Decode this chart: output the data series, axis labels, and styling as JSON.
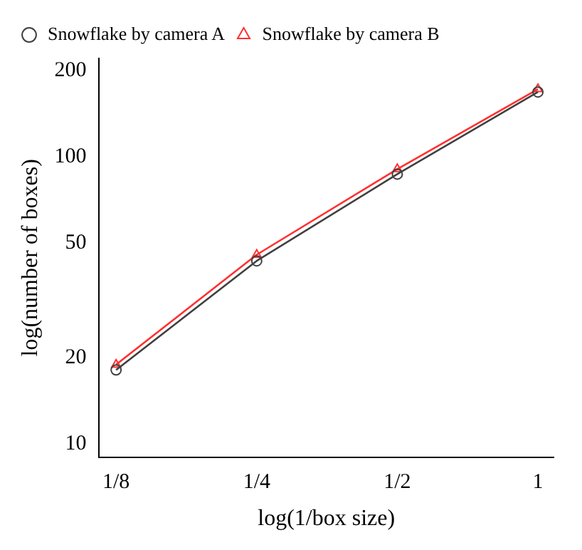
{
  "chart_data": {
    "type": "line",
    "xlabel": "log(1/box size)",
    "ylabel": "log(number of boxes)",
    "log": "xy",
    "x": [
      0.125,
      0.25,
      0.5,
      1
    ],
    "series": [
      {
        "name": "Snowflake by camera A",
        "color": "#404040",
        "marker": "circle",
        "values": [
          18.1,
          43.4,
          87,
          168
        ]
      },
      {
        "name": "Snowflake by camera B",
        "color": "#ff3030",
        "marker": "triangle",
        "values": [
          18.9,
          45.6,
          90.6,
          172
        ]
      }
    ],
    "xlim": [
      0.115,
      1.08
    ],
    "ylim": [
      9,
      220
    ],
    "xticks": [
      {
        "value": 0.125,
        "label": "1/8"
      },
      {
        "value": 0.25,
        "label": "1/4"
      },
      {
        "value": 0.5,
        "label": "1/2"
      },
      1
    ],
    "yticks": [
      10,
      20,
      50,
      100,
      200
    ],
    "grid": false,
    "legend": "top left"
  }
}
